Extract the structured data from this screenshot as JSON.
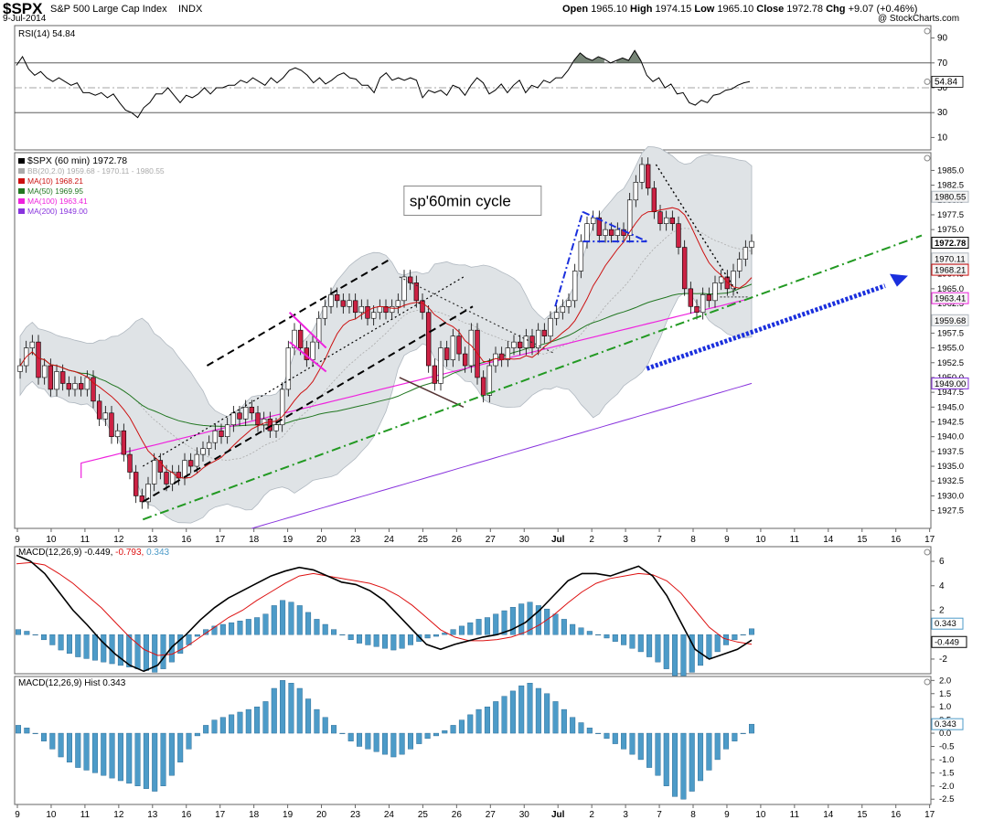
{
  "header": {
    "symbol": "$SPX",
    "name": "S&P 500 Large Cap Index",
    "exchange": "INDX",
    "date": "9-Jul-2014",
    "credit": "@ StockCharts.com",
    "ohlc": {
      "open_label": "Open",
      "open": "1965.10",
      "high_label": "High",
      "high": "1974.15",
      "low_label": "Low",
      "low": "1965.10",
      "close_label": "Close",
      "close": "1972.78",
      "chg_label": "Chg",
      "chg": "+9.07 (+0.46%)"
    }
  },
  "colors": {
    "up": "#ffffff",
    "down": "#cc2244",
    "ma10": "#cc1111",
    "ma50": "#227722",
    "ma100": "#ee22dd",
    "ma200": "#8833dd",
    "bb": "#b0b8c0",
    "macd": "#000000",
    "signal": "#dd1111",
    "hist": "#4d9bc8",
    "trend": "#229922",
    "arrow": "#1a2fdd"
  },
  "annotation": "sp'60min cycle",
  "chart_data": [
    {
      "panel": "rsi",
      "type": "line",
      "title": "RSI(14) 54.84",
      "value": "54.84",
      "ylim": [
        0,
        100
      ],
      "ticks": [
        "10",
        "30",
        "50",
        "70",
        "90"
      ],
      "levels": [
        30,
        70
      ],
      "values": [
        68,
        75,
        65,
        60,
        63,
        58,
        55,
        58,
        55,
        52,
        54,
        46,
        46,
        44,
        46,
        42,
        45,
        38,
        32,
        30,
        26,
        34,
        38,
        45,
        45,
        50,
        44,
        38,
        44,
        42,
        45,
        50,
        45,
        50,
        50,
        52,
        52,
        56,
        54,
        58,
        55,
        52,
        58,
        54,
        58,
        64,
        66,
        64,
        60,
        54,
        58,
        53,
        56,
        60,
        62,
        58,
        57,
        52,
        52,
        46,
        58,
        62,
        56,
        58,
        56,
        58,
        56,
        42,
        48,
        46,
        48,
        44,
        52,
        50,
        44,
        52,
        58,
        54,
        45,
        48,
        53,
        46,
        52,
        56,
        46,
        52,
        50,
        56,
        54,
        58,
        58,
        64,
        72,
        78,
        74,
        72,
        75,
        73,
        70,
        72,
        74,
        72,
        80,
        72,
        60,
        55,
        58,
        50,
        53,
        45,
        46,
        38,
        36,
        40,
        38,
        44,
        45,
        48,
        49,
        52,
        54,
        55
      ]
    },
    {
      "panel": "price",
      "type": "candlestick",
      "title": "$SPX (60 min) 1972.78",
      "ylim": [
        1924.5,
        1988
      ],
      "ticks": [
        "1927.5",
        "1930.0",
        "1932.5",
        "1935.0",
        "1937.5",
        "1940.0",
        "1942.5",
        "1945.0",
        "1947.5",
        "1950.0",
        "1952.5",
        "1955.0",
        "1957.5",
        "1960.0",
        "1962.5",
        "1965.0",
        "1967.5",
        "1970.0",
        "1972.5",
        "1975.0",
        "1977.5",
        "1980.0",
        "1982.5",
        "1985.0"
      ],
      "x_labels": [
        "9",
        "10",
        "11",
        "12",
        "13",
        "16",
        "17",
        "18",
        "19",
        "20",
        "23",
        "24",
        "25",
        "26",
        "27",
        "30",
        "Jul",
        "2",
        "3",
        "7",
        "8",
        "9",
        "10",
        "11",
        "14",
        "15",
        "16",
        "17"
      ],
      "legend": [
        {
          "label": "$SPX (60 min) 1972.78"
        },
        {
          "label": "BB(20,2.0) 1959.68 - 1970.11 - 1980.55"
        },
        {
          "label": "MA(10) 1968.21"
        },
        {
          "label": "MA(50) 1969.95"
        },
        {
          "label": "MA(100) 1963.41"
        },
        {
          "label": "MA(200) 1949.00"
        }
      ],
      "right_labels": [
        {
          "value": 1980.55,
          "text": "1980.55"
        },
        {
          "value": 1972.78,
          "text": "1972.78"
        },
        {
          "value": 1970.11,
          "text": "1970.11"
        },
        {
          "value": 1968.21,
          "text": "1968.21"
        },
        {
          "value": 1963.41,
          "text": "1963.41"
        },
        {
          "value": 1959.68,
          "text": "1959.68"
        },
        {
          "value": 1949.0,
          "text": "1949.00"
        }
      ],
      "closes": [
        1952,
        1955,
        1956,
        1950,
        1952,
        1948,
        1951,
        1949,
        1948,
        1949,
        1948,
        1950,
        1946,
        1943,
        1944,
        1940,
        1941,
        1937,
        1934,
        1930,
        1929,
        1932,
        1936,
        1934,
        1932,
        1934,
        1933,
        1936,
        1935,
        1937,
        1938,
        1939,
        1941,
        1940,
        1942,
        1944,
        1943,
        1945,
        1944,
        1942,
        1943,
        1941,
        1942,
        1948,
        1955,
        1958,
        1955,
        1953,
        1956,
        1960,
        1962,
        1964,
        1963,
        1962,
        1963,
        1961,
        1962,
        1960,
        1961,
        1962,
        1961,
        1962,
        1963,
        1967,
        1966,
        1963,
        1961,
        1952,
        1949,
        1955,
        1953,
        1957,
        1954,
        1952,
        1958,
        1950,
        1947,
        1952,
        1954,
        1953,
        1955,
        1956,
        1955,
        1957,
        1955,
        1958,
        1957,
        1960,
        1961,
        1962,
        1963,
        1968,
        1973,
        1976,
        1977,
        1974,
        1975,
        1974,
        1975,
        1974,
        1980,
        1983,
        1986,
        1982,
        1978,
        1976,
        1977,
        1976,
        1972,
        1965,
        1962,
        1961,
        1964,
        1963,
        1966,
        1967,
        1965,
        1968,
        1970,
        1972,
        1973
      ]
    },
    {
      "panel": "macd",
      "type": "line",
      "title": "MACD(12,26,9) -0.449, -0.793, 0.343",
      "values_text": [
        "-0.449",
        "-0.793",
        "0.343"
      ],
      "ylim": [
        -3.2,
        7.2
      ],
      "ticks": [
        "-2",
        "2",
        "4",
        "6"
      ],
      "series": [
        {
          "name": "MACD(12,26,9)",
          "values": [
            6.5,
            6.0,
            5.0,
            3.5,
            2.0,
            0.8,
            -0.5,
            -1.6,
            -2.5,
            -3.0,
            -2.5,
            -1.0,
            0.0,
            1.2,
            2.2,
            3.0,
            3.6,
            4.2,
            4.8,
            5.2,
            5.5,
            5.3,
            4.8,
            4.3,
            4.1,
            3.6,
            2.8,
            1.6,
            0.4,
            -0.8,
            -1.2,
            -0.8,
            -0.5,
            -0.2,
            0.0,
            0.4,
            1.0,
            2.0,
            3.2,
            4.4,
            5.0,
            5.0,
            4.8,
            5.2,
            5.6,
            4.8,
            3.2,
            1.0,
            -1.2,
            -2.0,
            -1.6,
            -1.2,
            -0.449
          ]
        },
        {
          "name": "signal",
          "values": [
            5.8,
            5.9,
            5.7,
            5.0,
            4.2,
            3.2,
            2.2,
            1.0,
            -0.2,
            -1.2,
            -1.7,
            -1.6,
            -1.0,
            -0.2,
            0.6,
            1.4,
            2.0,
            2.8,
            3.5,
            4.2,
            4.8,
            5.0,
            4.8,
            4.6,
            4.4,
            4.2,
            3.8,
            3.2,
            2.4,
            1.4,
            0.4,
            -0.2,
            -0.5,
            -0.5,
            -0.4,
            -0.2,
            0.2,
            0.8,
            1.6,
            2.6,
            3.5,
            4.2,
            4.6,
            4.8,
            5.0,
            4.9,
            4.4,
            3.4,
            2.0,
            0.6,
            -0.3,
            -0.6,
            -0.793
          ]
        }
      ]
    },
    {
      "panel": "hist",
      "type": "bar",
      "title": "MACD(12,26,9) Hist 0.343",
      "value": "0.343",
      "ylim": [
        -2.7,
        2.15
      ],
      "ticks": [
        "-2.5",
        "-2.0",
        "-1.5",
        "-1.0",
        "-0.5",
        "0.0",
        "0.5",
        "1.0",
        "1.5",
        "2.0"
      ],
      "values": [
        0.3,
        0.2,
        0.0,
        -0.3,
        -0.6,
        -0.9,
        -1.1,
        -1.3,
        -1.4,
        -1.5,
        -1.6,
        -1.7,
        -1.8,
        -1.9,
        -2.0,
        -2.1,
        -2.2,
        -2.0,
        -1.6,
        -1.1,
        -0.6,
        -0.1,
        0.3,
        0.5,
        0.6,
        0.7,
        0.8,
        0.9,
        1.0,
        1.2,
        1.7,
        2.0,
        1.9,
        1.7,
        1.3,
        0.9,
        0.6,
        0.3,
        0.0,
        -0.3,
        -0.5,
        -0.6,
        -0.7,
        -0.8,
        -0.9,
        -0.8,
        -0.6,
        -0.4,
        -0.2,
        -0.1,
        0.1,
        0.3,
        0.5,
        0.7,
        0.9,
        1.0,
        1.2,
        1.4,
        1.6,
        1.8,
        1.9,
        1.7,
        1.5,
        1.2,
        0.9,
        0.6,
        0.4,
        0.2,
        0.0,
        -0.2,
        -0.4,
        -0.6,
        -0.8,
        -1.0,
        -1.3,
        -1.6,
        -2.0,
        -2.4,
        -2.5,
        -2.2,
        -1.8,
        -1.4,
        -1.0,
        -0.6,
        -0.3,
        0.0,
        0.343
      ]
    }
  ]
}
